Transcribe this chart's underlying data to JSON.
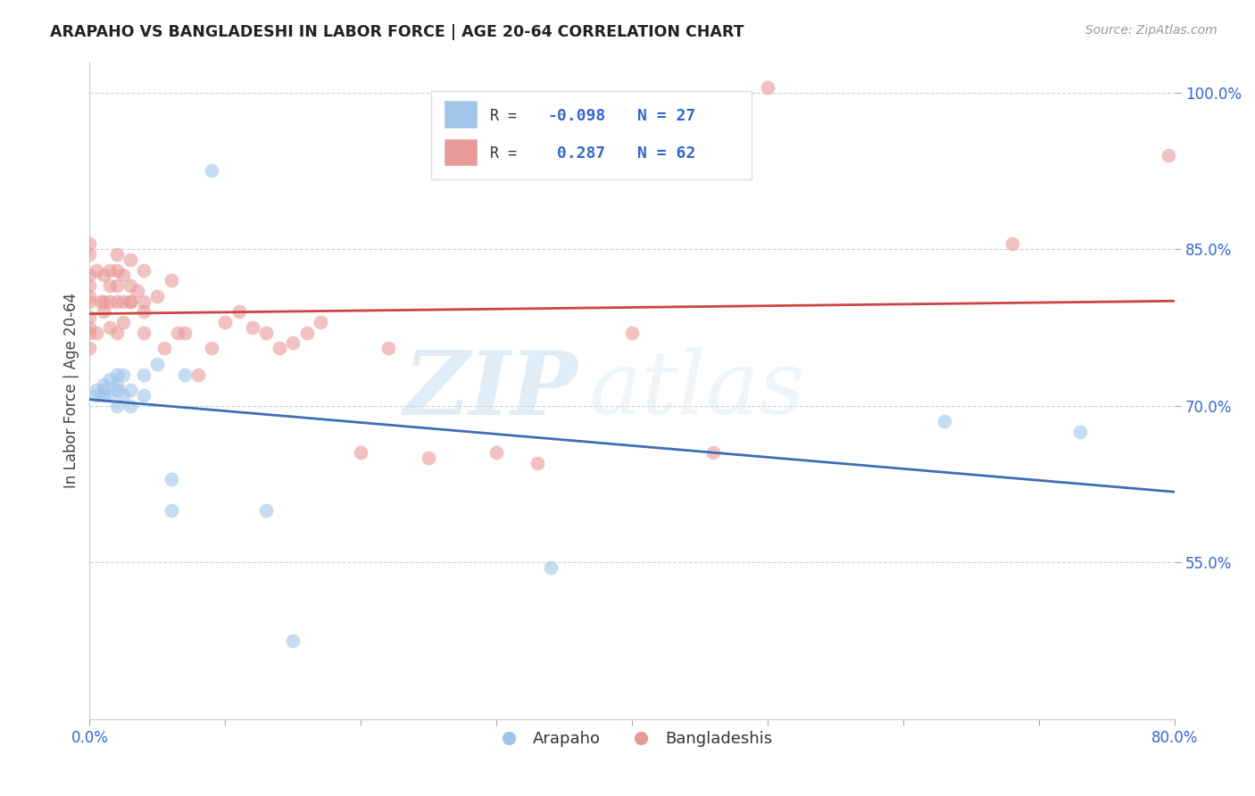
{
  "title": "ARAPAHO VS BANGLADESHI IN LABOR FORCE | AGE 20-64 CORRELATION CHART",
  "source": "Source: ZipAtlas.com",
  "ylabel": "In Labor Force | Age 20-64",
  "x_min": 0.0,
  "x_max": 0.8,
  "y_min": 0.4,
  "y_max": 1.03,
  "x_ticks": [
    0.0,
    0.1,
    0.2,
    0.3,
    0.4,
    0.5,
    0.6,
    0.7,
    0.8
  ],
  "x_tick_labels": [
    "0.0%",
    "",
    "",
    "",
    "",
    "",
    "",
    "",
    "80.0%"
  ],
  "y_ticks": [
    0.55,
    0.7,
    0.85,
    1.0
  ],
  "y_tick_labels": [
    "55.0%",
    "70.0%",
    "85.0%",
    "100.0%"
  ],
  "arapaho_color": "#9fc5e8",
  "bangladeshi_color": "#ea9999",
  "arapaho_line_color": "#3d6eb5",
  "bangladeshi_line_color": "#cc4444",
  "legend_r_arapaho": "-0.098",
  "legend_n_arapaho": "27",
  "legend_r_bangladeshi": "0.287",
  "legend_n_bangladeshi": "62",
  "watermark_zip": "ZIP",
  "watermark_atlas": "atlas",
  "arapaho_x": [
    0.005,
    0.005,
    0.01,
    0.01,
    0.01,
    0.015,
    0.015,
    0.02,
    0.02,
    0.02,
    0.02,
    0.025,
    0.025,
    0.03,
    0.03,
    0.04,
    0.04,
    0.05,
    0.06,
    0.06,
    0.07,
    0.09,
    0.13,
    0.15,
    0.34,
    0.63,
    0.73
  ],
  "arapaho_y": [
    0.71,
    0.715,
    0.71,
    0.715,
    0.72,
    0.71,
    0.725,
    0.7,
    0.715,
    0.72,
    0.73,
    0.71,
    0.73,
    0.7,
    0.715,
    0.71,
    0.73,
    0.74,
    0.6,
    0.63,
    0.73,
    0.925,
    0.6,
    0.475,
    0.545,
    0.685,
    0.675
  ],
  "bangladeshi_x": [
    0.0,
    0.0,
    0.0,
    0.0,
    0.0,
    0.0,
    0.0,
    0.0,
    0.0,
    0.0,
    0.005,
    0.005,
    0.008,
    0.01,
    0.01,
    0.01,
    0.015,
    0.015,
    0.015,
    0.015,
    0.02,
    0.02,
    0.02,
    0.02,
    0.02,
    0.025,
    0.025,
    0.025,
    0.03,
    0.03,
    0.03,
    0.03,
    0.035,
    0.04,
    0.04,
    0.04,
    0.04,
    0.05,
    0.055,
    0.06,
    0.065,
    0.07,
    0.08,
    0.09,
    0.1,
    0.11,
    0.12,
    0.13,
    0.14,
    0.15,
    0.16,
    0.17,
    0.2,
    0.22,
    0.25,
    0.3,
    0.33,
    0.4,
    0.46,
    0.5,
    0.68,
    0.795
  ],
  "bangladeshi_y": [
    0.755,
    0.77,
    0.775,
    0.785,
    0.8,
    0.805,
    0.815,
    0.825,
    0.845,
    0.855,
    0.77,
    0.83,
    0.8,
    0.79,
    0.8,
    0.825,
    0.775,
    0.8,
    0.815,
    0.83,
    0.77,
    0.8,
    0.815,
    0.83,
    0.845,
    0.78,
    0.8,
    0.825,
    0.8,
    0.8,
    0.815,
    0.84,
    0.81,
    0.77,
    0.79,
    0.8,
    0.83,
    0.805,
    0.755,
    0.82,
    0.77,
    0.77,
    0.73,
    0.755,
    0.78,
    0.79,
    0.775,
    0.77,
    0.755,
    0.76,
    0.77,
    0.78,
    0.655,
    0.755,
    0.65,
    0.655,
    0.645,
    0.77,
    0.655,
    1.005,
    0.855,
    0.94
  ]
}
